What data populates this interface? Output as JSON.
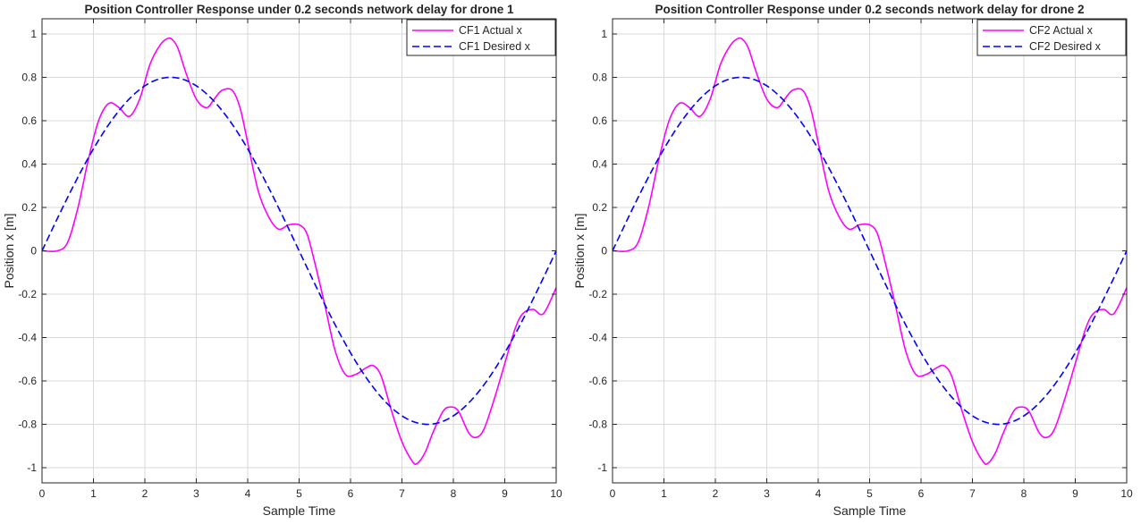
{
  "chart_data": [
    {
      "type": "line",
      "title": "Position Controller Response under 0.2 seconds network delay for drone 1",
      "xlabel": "Sample Time",
      "ylabel": "Position x [m]",
      "xlim": [
        0,
        10
      ],
      "ylim": [
        -1.07,
        1.07
      ],
      "x_ticks": [
        "0",
        "1",
        "2",
        "3",
        "4",
        "5",
        "6",
        "7",
        "8",
        "9",
        "10"
      ],
      "y_ticks": [
        "1",
        "0.8",
        "0.6",
        "0.4",
        "0.2",
        "0",
        "-0.2",
        "-0.4",
        "-0.6",
        "-0.8",
        "-1"
      ],
      "grid": true,
      "legend_position": "top-right",
      "series": [
        {
          "name": "CF1 Actual x",
          "color": "#ff00ff",
          "style": "solid",
          "x": [
            0,
            0.3,
            0.5,
            0.7,
            0.9,
            1.1,
            1.3,
            1.5,
            1.7,
            1.9,
            2.1,
            2.3,
            2.45,
            2.55,
            2.65,
            2.8,
            3.0,
            3.2,
            3.35,
            3.5,
            3.7,
            3.85,
            4.0,
            4.2,
            4.4,
            4.6,
            4.8,
            5.0,
            5.15,
            5.3,
            5.5,
            5.7,
            5.9,
            6.1,
            6.3,
            6.45,
            6.6,
            6.8,
            7.0,
            7.2,
            7.3,
            7.45,
            7.6,
            7.8,
            7.95,
            8.1,
            8.3,
            8.45,
            8.6,
            8.8,
            9.0,
            9.2,
            9.35,
            9.55,
            9.75,
            10.0
          ],
          "values": [
            0,
            0,
            0.04,
            0.2,
            0.42,
            0.6,
            0.68,
            0.66,
            0.62,
            0.7,
            0.86,
            0.95,
            0.98,
            0.97,
            0.93,
            0.82,
            0.7,
            0.66,
            0.7,
            0.74,
            0.74,
            0.66,
            0.5,
            0.28,
            0.16,
            0.1,
            0.12,
            0.12,
            0.08,
            -0.05,
            -0.25,
            -0.46,
            -0.57,
            -0.57,
            -0.54,
            -0.53,
            -0.58,
            -0.74,
            -0.88,
            -0.97,
            -0.98,
            -0.93,
            -0.84,
            -0.74,
            -0.72,
            -0.74,
            -0.84,
            -0.86,
            -0.82,
            -0.68,
            -0.52,
            -0.36,
            -0.29,
            -0.27,
            -0.29,
            -0.17
          ]
        },
        {
          "name": "CF1 Desired x",
          "color": "#0000ff",
          "style": "dashed",
          "function": "0.8*sin(2*pi*x/10)"
        }
      ]
    },
    {
      "type": "line",
      "title": "Position Controller Response under 0.2 seconds network delay for drone 2",
      "xlabel": "Sample Time",
      "ylabel": "Position x [m]",
      "xlim": [
        0,
        10
      ],
      "ylim": [
        -1.07,
        1.07
      ],
      "x_ticks": [
        "0",
        "1",
        "2",
        "3",
        "4",
        "5",
        "6",
        "7",
        "8",
        "9",
        "10"
      ],
      "y_ticks": [
        "1",
        "0.8",
        "0.6",
        "0.4",
        "0.2",
        "0",
        "-0.2",
        "-0.4",
        "-0.6",
        "-0.8",
        "-1"
      ],
      "grid": true,
      "legend_position": "top-right",
      "series": [
        {
          "name": "CF2 Actual x",
          "color": "#ff00ff",
          "style": "solid",
          "x": [
            0,
            0.3,
            0.5,
            0.7,
            0.9,
            1.1,
            1.3,
            1.5,
            1.7,
            1.9,
            2.1,
            2.3,
            2.45,
            2.55,
            2.65,
            2.8,
            3.0,
            3.2,
            3.35,
            3.5,
            3.7,
            3.85,
            4.0,
            4.2,
            4.4,
            4.6,
            4.8,
            5.0,
            5.15,
            5.3,
            5.5,
            5.7,
            5.9,
            6.1,
            6.3,
            6.45,
            6.6,
            6.8,
            7.0,
            7.2,
            7.3,
            7.45,
            7.6,
            7.8,
            7.95,
            8.1,
            8.3,
            8.45,
            8.6,
            8.8,
            9.0,
            9.2,
            9.35,
            9.55,
            9.75,
            10.0
          ],
          "values": [
            0,
            0,
            0.04,
            0.2,
            0.42,
            0.6,
            0.68,
            0.66,
            0.62,
            0.7,
            0.86,
            0.95,
            0.98,
            0.97,
            0.93,
            0.82,
            0.7,
            0.66,
            0.7,
            0.74,
            0.74,
            0.66,
            0.5,
            0.28,
            0.16,
            0.1,
            0.12,
            0.12,
            0.08,
            -0.05,
            -0.25,
            -0.46,
            -0.57,
            -0.57,
            -0.54,
            -0.53,
            -0.58,
            -0.74,
            -0.88,
            -0.97,
            -0.98,
            -0.93,
            -0.84,
            -0.74,
            -0.72,
            -0.74,
            -0.84,
            -0.86,
            -0.82,
            -0.68,
            -0.52,
            -0.36,
            -0.29,
            -0.27,
            -0.29,
            -0.17
          ]
        },
        {
          "name": "CF2 Desired x",
          "color": "#0000ff",
          "style": "dashed",
          "function": "0.8*sin(2*pi*x/10)"
        }
      ]
    }
  ]
}
